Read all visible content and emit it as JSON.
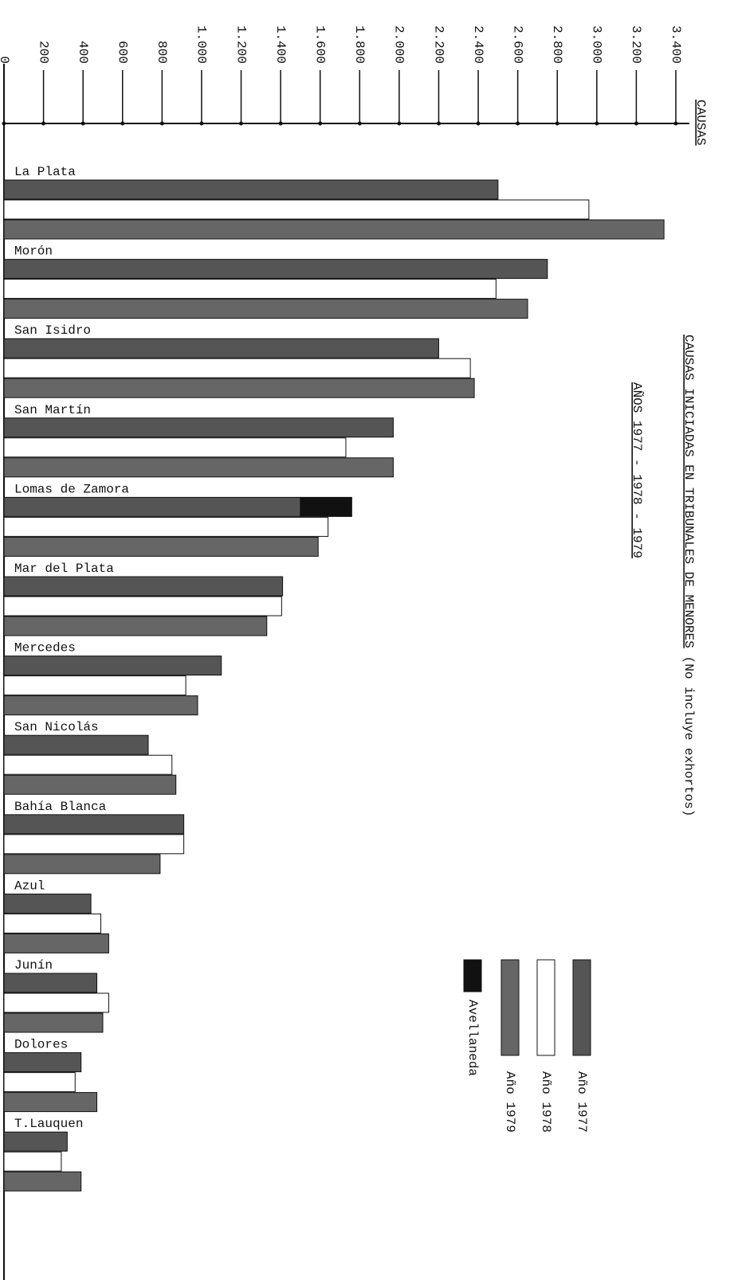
{
  "chart_data": {
    "type": "bar",
    "title": "CAUSAS INICIADAS EN TRIBUNALES DE MENORES",
    "note": "(No incluye exhortos)",
    "subtitle": "AÑOS 1977 - 1978 - 1979",
    "x_label": "CAUSAS",
    "categories": [
      "La Plata",
      "Morón",
      "San Isidro",
      "San Martín",
      "Lomas de Zamora",
      "Mar del Plata",
      "Mercedes",
      "San Nicolás",
      "Bahía Blanca",
      "Azul",
      "Junín",
      "Dolores",
      "T.Lauquen"
    ],
    "series": [
      {
        "name": "Año 1977",
        "color": "#555555",
        "values": [
          2500,
          2750,
          2200,
          1970,
          1500,
          1410,
          1100,
          730,
          910,
          440,
          470,
          390,
          320
        ]
      },
      {
        "name": "Año 1978",
        "color": "#ffffff",
        "values": [
          2960,
          2490,
          2360,
          1730,
          1640,
          1405,
          920,
          850,
          910,
          490,
          530,
          360,
          290
        ]
      },
      {
        "name": "Año 1979",
        "color": "#666666",
        "values": [
          3340,
          2650,
          2380,
          1970,
          1590,
          1330,
          980,
          870,
          790,
          530,
          500,
          470,
          390
        ]
      },
      {
        "name": "Avellaneda",
        "color": "#111111",
        "values": [
          null,
          null,
          null,
          null,
          260,
          null,
          null,
          null,
          null,
          null,
          null,
          null,
          null
        ]
      }
    ],
    "xlim": [
      0,
      3400
    ],
    "xticks": [
      0,
      200,
      400,
      600,
      800,
      {
        "value": 1000,
        "label": "1.000"
      },
      {
        "value": 1200,
        "label": "1.200"
      },
      {
        "value": 1400,
        "label": "1.400"
      },
      {
        "value": 1600,
        "label": "1.600"
      },
      {
        "value": 1800,
        "label": "1.800"
      },
      {
        "value": 2000,
        "label": "2.000"
      },
      {
        "value": 2200,
        "label": "2.200"
      },
      {
        "value": 2400,
        "label": "2.400"
      },
      {
        "value": 2600,
        "label": "2.600"
      },
      {
        "value": 2800,
        "label": "2.800"
      },
      {
        "value": 3000,
        "label": "3.000"
      },
      {
        "value": 3200,
        "label": "3.200"
      },
      {
        "value": 3400,
        "label": "3.400"
      }
    ]
  }
}
